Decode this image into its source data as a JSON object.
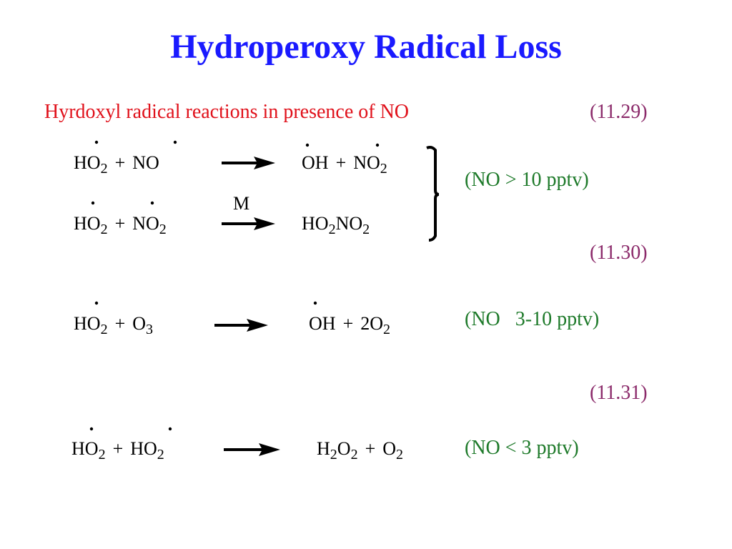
{
  "title": "Hydroperoxy Radical Loss",
  "subtitle": "Hyrdoxyl radical reactions in presence of NO",
  "equation_numbers": [
    "(11.29)",
    "(11.30)",
    "(11.31)"
  ],
  "conditions": [
    "(NO > 10 pptv)",
    "(NO   3-10 pptv)",
    "(NO < 3 pptv)"
  ],
  "reactions": [
    {
      "lhs": [
        "HO",
        {
          "sub": "2"
        },
        "+",
        "NO"
      ],
      "rhs": [
        "OH",
        "+",
        "NO",
        {
          "sub": "2"
        }
      ]
    },
    {
      "lhs": [
        "HO",
        {
          "sub": "2"
        },
        "+",
        "NO",
        {
          "sub": "2"
        }
      ],
      "over_arrow": "M",
      "rhs": [
        "HO",
        {
          "sub": "2"
        },
        "NO",
        {
          "sub": "2"
        }
      ]
    },
    {
      "lhs": [
        "HO",
        {
          "sub": "2"
        },
        "+",
        "O",
        {
          "sub": "3"
        }
      ],
      "rhs": [
        "OH",
        "+",
        "2O",
        {
          "sub": "2"
        }
      ]
    },
    {
      "lhs": [
        "HO",
        {
          "sub": "2"
        },
        "+",
        "HO",
        {
          "sub": "2"
        }
      ],
      "rhs": [
        "H",
        {
          "sub": "2"
        },
        "O",
        {
          "sub": "2"
        },
        "+",
        "O",
        {
          "sub": "2"
        }
      ]
    }
  ]
}
